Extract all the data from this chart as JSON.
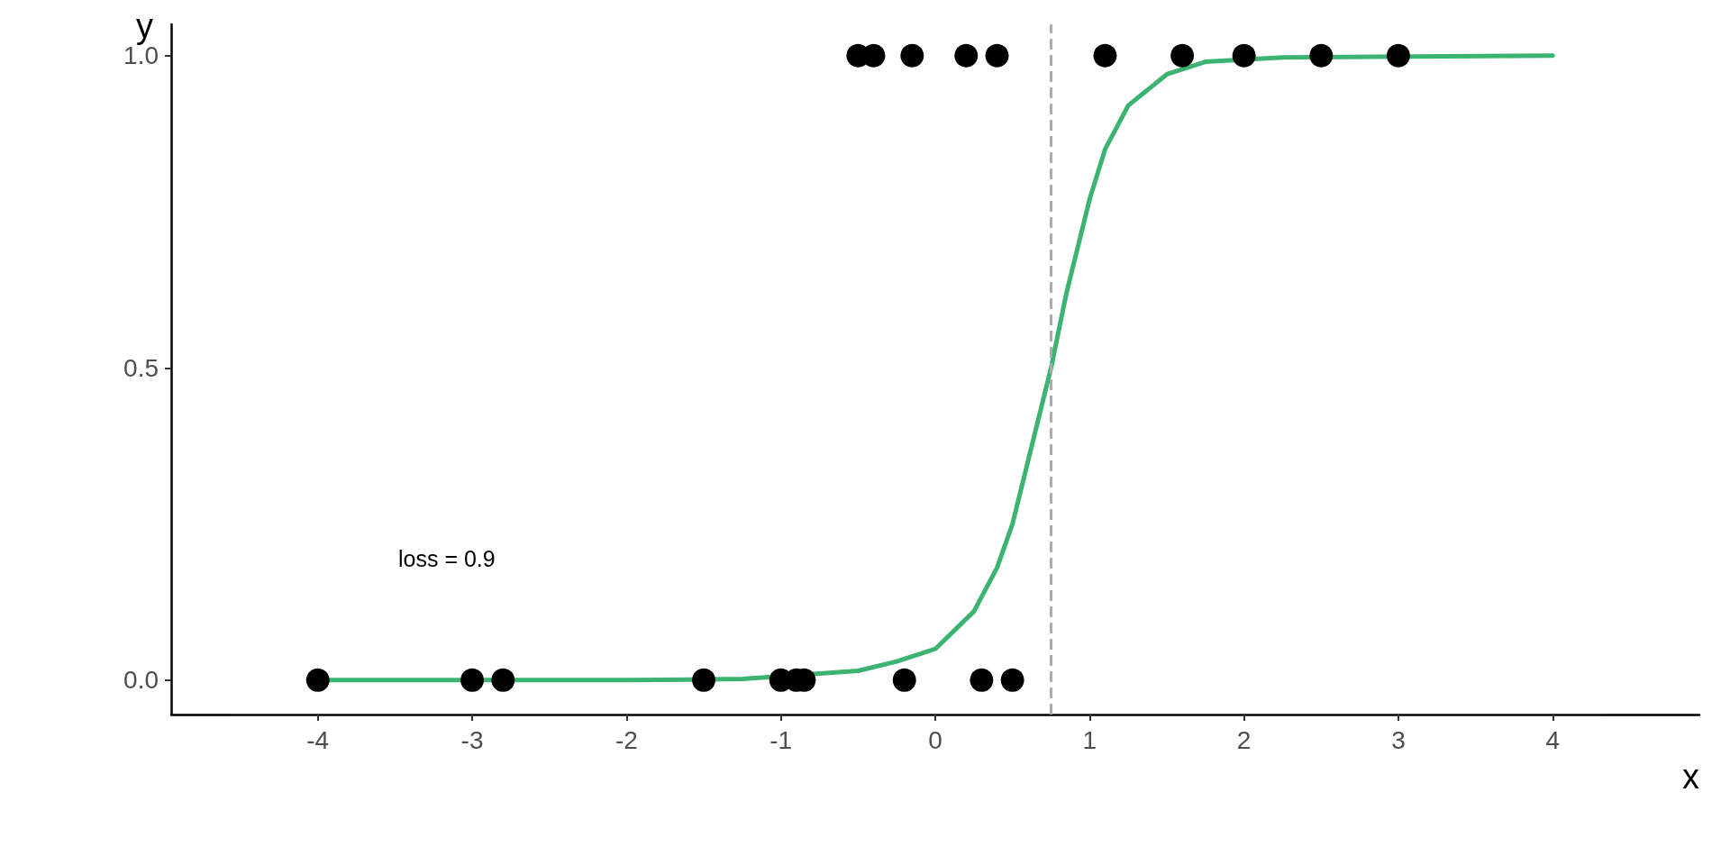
{
  "chart_data": {
    "type": "scatter",
    "xlabel": "x",
    "ylabel": "y",
    "annotations": [
      "loss = 0.9"
    ],
    "xlim": [
      -4.95,
      4.95
    ],
    "xticks": [
      -4,
      -3,
      -2,
      -1,
      0,
      1,
      2,
      3,
      4
    ],
    "ylim": [
      -0.055,
      1.05
    ],
    "yticks": [
      {
        "value": 0,
        "label": "0.0"
      },
      {
        "value": 0.5,
        "label": "0.5"
      },
      {
        "value": 1,
        "label": "1.0"
      }
    ],
    "grid": false,
    "series": [
      {
        "type": "line",
        "color": "#3cb371",
        "marker": "none",
        "line_style": "solid",
        "x": [
          -4,
          -3,
          -2,
          -1.25,
          -0.5,
          -0.25,
          0,
          0.25,
          0.4,
          0.5,
          0.65,
          0.75,
          0.85,
          1,
          1.1,
          1.25,
          1.4,
          1.5,
          1.75,
          2.25,
          4
        ],
        "values": [
          0,
          0,
          0,
          0.002,
          0.015,
          0.03,
          0.05,
          0.11,
          0.18,
          0.25,
          0.4,
          0.5,
          0.62,
          0.77,
          0.85,
          0.92,
          0.95,
          0.97,
          0.99,
          0.997,
          1
        ]
      },
      {
        "color": "#000000",
        "marker": "circle",
        "x": [
          -0.5,
          -0.4,
          -0.15,
          0.2,
          0.4,
          1.1,
          1.6,
          2,
          2.5,
          3,
          -4,
          -3,
          -2.8,
          -1.5,
          -1,
          -0.9,
          -0.85,
          -0.2,
          0.3,
          0.5
        ],
        "values": [
          1,
          1,
          1,
          1,
          1,
          1,
          1,
          1,
          1,
          1,
          0,
          0,
          0,
          0,
          0,
          0,
          0,
          0,
          0,
          0
        ]
      }
    ],
    "ref_lines": [
      {
        "axis": "x",
        "value": 0.75,
        "color": "#aaaaaa",
        "line_style": "dashed"
      }
    ]
  }
}
